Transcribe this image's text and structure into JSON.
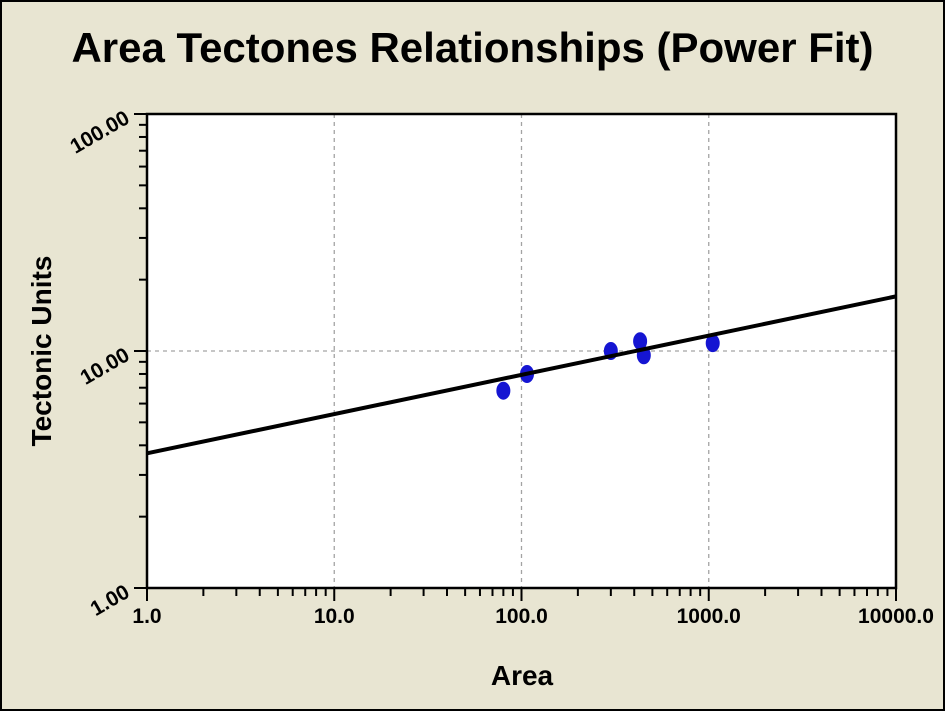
{
  "window": {
    "background_color": "#E8E5D2",
    "border_color": "#000000"
  },
  "chart_data": {
    "type": "scatter",
    "title": "Area Tectones Relationships (Power Fit)",
    "xlabel": "Area",
    "ylabel": "Tectonic Units",
    "x_scale": "log",
    "y_scale": "log",
    "xlim": [
      1,
      10000
    ],
    "ylim": [
      1,
      100
    ],
    "x_ticks": [
      {
        "value": 1,
        "label": "1.0"
      },
      {
        "value": 10,
        "label": "10.0"
      },
      {
        "value": 100,
        "label": "100.0"
      },
      {
        "value": 1000,
        "label": "1000.0"
      },
      {
        "value": 10000,
        "label": "10000.0"
      }
    ],
    "y_ticks": [
      {
        "value": 1,
        "label": "1.00"
      },
      {
        "value": 10,
        "label": "10.00"
      },
      {
        "value": 100,
        "label": "100.00"
      }
    ],
    "grid": {
      "x_values": [
        10,
        100,
        1000
      ],
      "y_values": [
        10
      ],
      "style": "dashed",
      "color": "#A3A3A3"
    },
    "points": [
      {
        "x": 80,
        "y": 6.8
      },
      {
        "x": 107,
        "y": 8.0
      },
      {
        "x": 300,
        "y": 10.0
      },
      {
        "x": 430,
        "y": 11.0
      },
      {
        "x": 450,
        "y": 9.6
      },
      {
        "x": 1050,
        "y": 10.8
      }
    ],
    "fit_line": {
      "x1": 1,
      "y1": 3.7,
      "x2": 10000,
      "y2": 17.0
    },
    "marker": {
      "shape": "ellipse",
      "color": "#1515D2",
      "rx": 7,
      "ry": 9
    },
    "colors": {
      "plot_background": "#FFFFFF",
      "axis": "#000000",
      "fit_line": "#000000",
      "tick_label": "#000000"
    },
    "legend": null
  }
}
